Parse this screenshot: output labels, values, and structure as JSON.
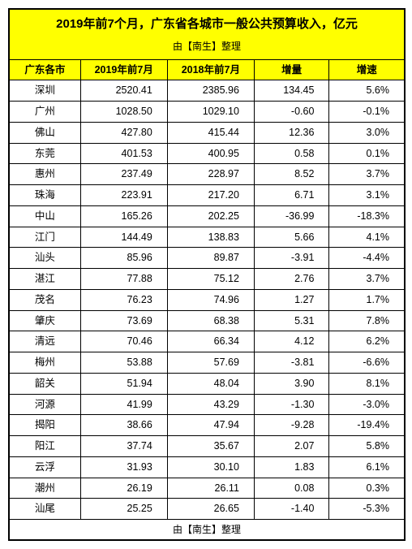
{
  "title": "2019年前7个月，广东省各城市一般公共预算收入，亿元",
  "subtitle": "由【南生】整理",
  "footer": "由【南生】整理",
  "columns": [
    "广东各市",
    "2019年前7月",
    "2018年前7月",
    "增量",
    "增速"
  ],
  "col_widths": [
    "18%",
    "22%",
    "22%",
    "19%",
    "19%"
  ],
  "header_bg": "#ffff00",
  "border_color": "#000000",
  "font_size_title": 15,
  "font_size_body": 12.5,
  "rows": [
    {
      "city": "深圳",
      "v2019": "2520.41",
      "v2018": "2385.96",
      "delta": "134.45",
      "rate": "5.6%"
    },
    {
      "city": "广州",
      "v2019": "1028.50",
      "v2018": "1029.10",
      "delta": "-0.60",
      "rate": "-0.1%"
    },
    {
      "city": "佛山",
      "v2019": "427.80",
      "v2018": "415.44",
      "delta": "12.36",
      "rate": "3.0%"
    },
    {
      "city": "东莞",
      "v2019": "401.53",
      "v2018": "400.95",
      "delta": "0.58",
      "rate": "0.1%"
    },
    {
      "city": "惠州",
      "v2019": "237.49",
      "v2018": "228.97",
      "delta": "8.52",
      "rate": "3.7%"
    },
    {
      "city": "珠海",
      "v2019": "223.91",
      "v2018": "217.20",
      "delta": "6.71",
      "rate": "3.1%"
    },
    {
      "city": "中山",
      "v2019": "165.26",
      "v2018": "202.25",
      "delta": "-36.99",
      "rate": "-18.3%"
    },
    {
      "city": "江门",
      "v2019": "144.49",
      "v2018": "138.83",
      "delta": "5.66",
      "rate": "4.1%"
    },
    {
      "city": "汕头",
      "v2019": "85.96",
      "v2018": "89.87",
      "delta": "-3.91",
      "rate": "-4.4%"
    },
    {
      "city": "湛江",
      "v2019": "77.88",
      "v2018": "75.12",
      "delta": "2.76",
      "rate": "3.7%"
    },
    {
      "city": "茂名",
      "v2019": "76.23",
      "v2018": "74.96",
      "delta": "1.27",
      "rate": "1.7%"
    },
    {
      "city": "肇庆",
      "v2019": "73.69",
      "v2018": "68.38",
      "delta": "5.31",
      "rate": "7.8%"
    },
    {
      "city": "清远",
      "v2019": "70.46",
      "v2018": "66.34",
      "delta": "4.12",
      "rate": "6.2%"
    },
    {
      "city": "梅州",
      "v2019": "53.88",
      "v2018": "57.69",
      "delta": "-3.81",
      "rate": "-6.6%"
    },
    {
      "city": "韶关",
      "v2019": "51.94",
      "v2018": "48.04",
      "delta": "3.90",
      "rate": "8.1%"
    },
    {
      "city": "河源",
      "v2019": "41.99",
      "v2018": "43.29",
      "delta": "-1.30",
      "rate": "-3.0%"
    },
    {
      "city": "揭阳",
      "v2019": "38.66",
      "v2018": "47.94",
      "delta": "-9.28",
      "rate": "-19.4%"
    },
    {
      "city": "阳江",
      "v2019": "37.74",
      "v2018": "35.67",
      "delta": "2.07",
      "rate": "5.8%"
    },
    {
      "city": "云浮",
      "v2019": "31.93",
      "v2018": "30.10",
      "delta": "1.83",
      "rate": "6.1%"
    },
    {
      "city": "潮州",
      "v2019": "26.19",
      "v2018": "26.11",
      "delta": "0.08",
      "rate": "0.3%"
    },
    {
      "city": "汕尾",
      "v2019": "25.25",
      "v2018": "26.65",
      "delta": "-1.40",
      "rate": "-5.3%"
    }
  ]
}
